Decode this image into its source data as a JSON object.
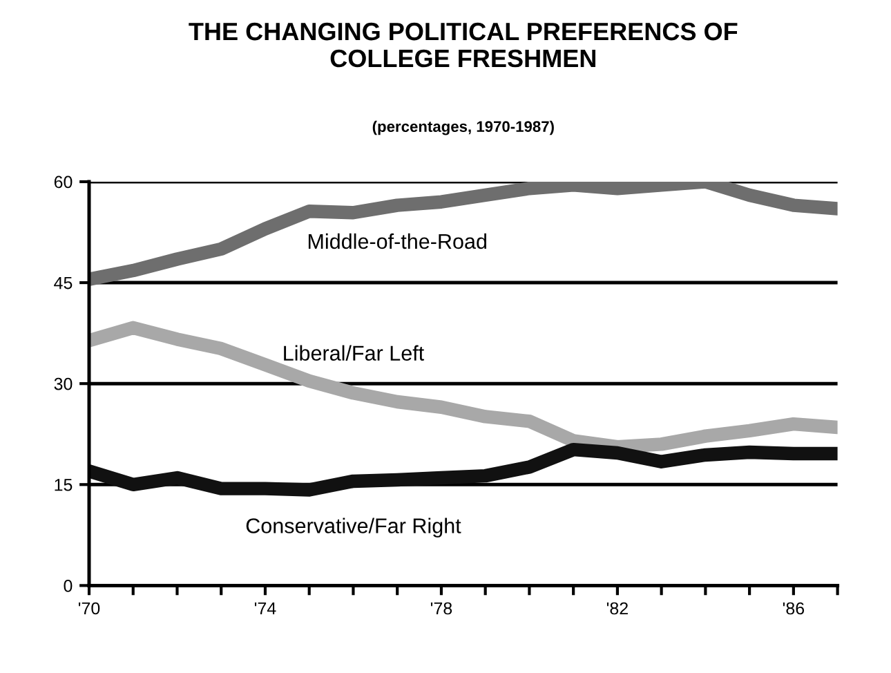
{
  "chart_data": {
    "type": "line",
    "title": "THE CHANGING POLITICAL PREFERENCS OF\nCOLLEGE FRESHMEN",
    "subtitle": "(percentages, 1970-1987)",
    "x": [
      1970,
      1971,
      1972,
      1973,
      1974,
      1975,
      1976,
      1977,
      1978,
      1979,
      1980,
      1981,
      1982,
      1983,
      1984,
      1985,
      1986,
      1987
    ],
    "series": [
      {
        "name": "Middle-of-the-Road",
        "color": "#6e6e6e",
        "values": [
          45.5,
          46.8,
          48.5,
          50,
          53,
          55.6,
          55.4,
          56.5,
          57,
          58,
          59,
          59.5,
          59,
          59.5,
          60,
          58,
          56.5,
          56
        ]
      },
      {
        "name": "Liberal/Far Left",
        "color": "#a8a8a8",
        "values": [
          36.4,
          38.3,
          36.6,
          35.2,
          32.8,
          30.4,
          28.6,
          27.3,
          26.5,
          25.1,
          24.4,
          21.5,
          20.6,
          21,
          22.2,
          23,
          24,
          23.5
        ]
      },
      {
        "name": "Conservative/Far Right",
        "color": "#111111",
        "values": [
          17,
          15,
          16,
          14.4,
          14.4,
          14.2,
          15.5,
          15.7,
          16,
          16.3,
          17.6,
          20.2,
          19.7,
          18.4,
          19.4,
          19.8,
          19.6,
          19.6
        ]
      }
    ],
    "xlim": [
      1970,
      1987
    ],
    "ylim": [
      0,
      60
    ],
    "yticks": [
      0,
      15,
      30,
      45,
      60
    ],
    "xticks": [
      {
        "value": 1970,
        "label": "'70"
      },
      {
        "value": 1971,
        "label": null
      },
      {
        "value": 1972,
        "label": null
      },
      {
        "value": 1973,
        "label": null
      },
      {
        "value": 1974,
        "label": "'74"
      },
      {
        "value": 1975,
        "label": null
      },
      {
        "value": 1976,
        "label": null
      },
      {
        "value": 1977,
        "label": null
      },
      {
        "value": 1978,
        "label": "'78"
      },
      {
        "value": 1979,
        "label": null
      },
      {
        "value": 1980,
        "label": null
      },
      {
        "value": 1981,
        "label": null
      },
      {
        "value": 1982,
        "label": "'82"
      },
      {
        "value": 1983,
        "label": null
      },
      {
        "value": 1984,
        "label": null
      },
      {
        "value": 1985,
        "label": null
      },
      {
        "value": 1986,
        "label": "'86"
      },
      {
        "value": 1987,
        "label": null
      }
    ],
    "grid": "y",
    "line_style": "solid",
    "marker": "none"
  }
}
